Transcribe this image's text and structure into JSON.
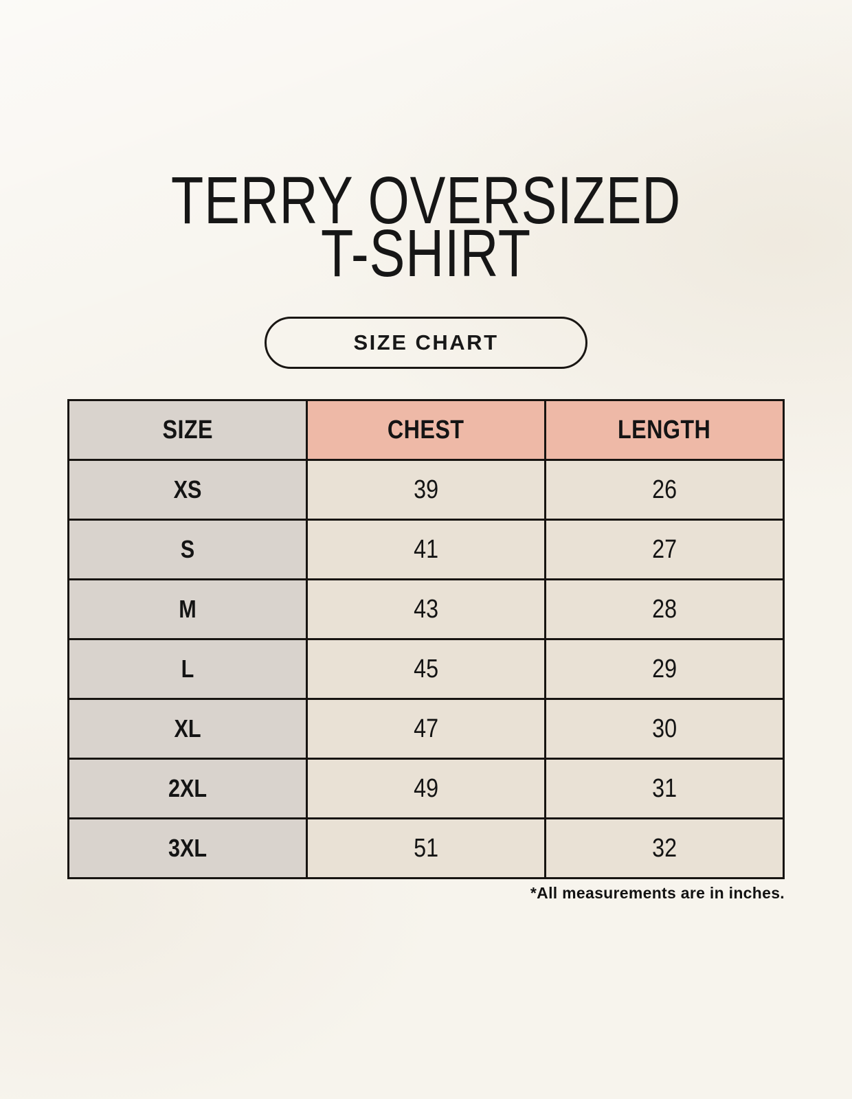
{
  "page": {
    "title": [
      "TERRY OVERSIZED",
      "T-SHIRT"
    ],
    "size_chart_label": "SIZE CHART",
    "footnote": "*All measurements are in inches."
  },
  "chart_data": {
    "type": "table",
    "title": "TERRY OVERSIZED T-SHIRT",
    "columns": [
      "SIZE",
      "CHEST",
      "LENGTH"
    ],
    "rows": [
      [
        "XS",
        "39",
        "26"
      ],
      [
        "S",
        "41",
        "27"
      ],
      [
        "M",
        "43",
        "28"
      ],
      [
        "L",
        "45",
        "29"
      ],
      [
        "XL",
        "47",
        "30"
      ],
      [
        "2XL",
        "49",
        "31"
      ],
      [
        "3XL",
        "51",
        "32"
      ]
    ],
    "units": "inches"
  },
  "colors": {
    "background": "#f7f4ed",
    "size_column_bg": "#d9d3cd",
    "header_accent_bg": "#eeb9a7",
    "value_cell_bg": "#e9e1d5",
    "border": "#171411",
    "text": "#141414"
  }
}
